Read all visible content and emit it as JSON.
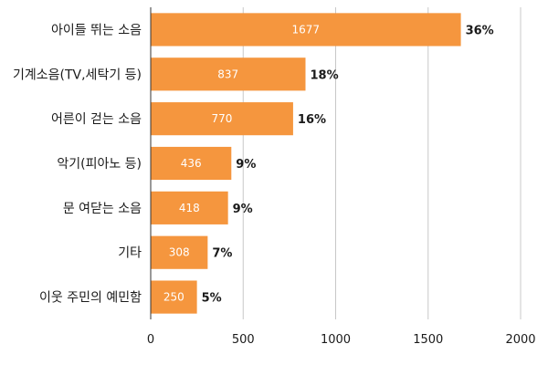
{
  "chart_data": {
    "type": "bar",
    "orientation": "horizontal",
    "categories": [
      "아이들 뛰는 소음",
      "기계소음(TV,세탁기 등)",
      "어른이 걷는 소음",
      "악기(피아노 등)",
      "문 여닫는 소음",
      "기타",
      "이웃 주민의 예민함"
    ],
    "values": [
      1677,
      837,
      770,
      436,
      418,
      308,
      250
    ],
    "value_labels": [
      "1677",
      "837",
      "770",
      "436",
      "418",
      "308",
      "250"
    ],
    "percent_labels": [
      "36%",
      "18%",
      "16%",
      "9%",
      "9%",
      "7%",
      "5%"
    ],
    "title": "",
    "xlabel": "",
    "ylabel": "",
    "xlim": [
      0,
      2000
    ],
    "xticks": [
      0,
      500,
      1000,
      1500,
      2000
    ],
    "xtick_labels": [
      "0",
      "500",
      "1000",
      "1500",
      "2000"
    ],
    "grid": "vertical",
    "legend": "none",
    "colors": {
      "bar": "#F5963E",
      "grid": "#c8c8c8",
      "axis": "#333333"
    }
  }
}
